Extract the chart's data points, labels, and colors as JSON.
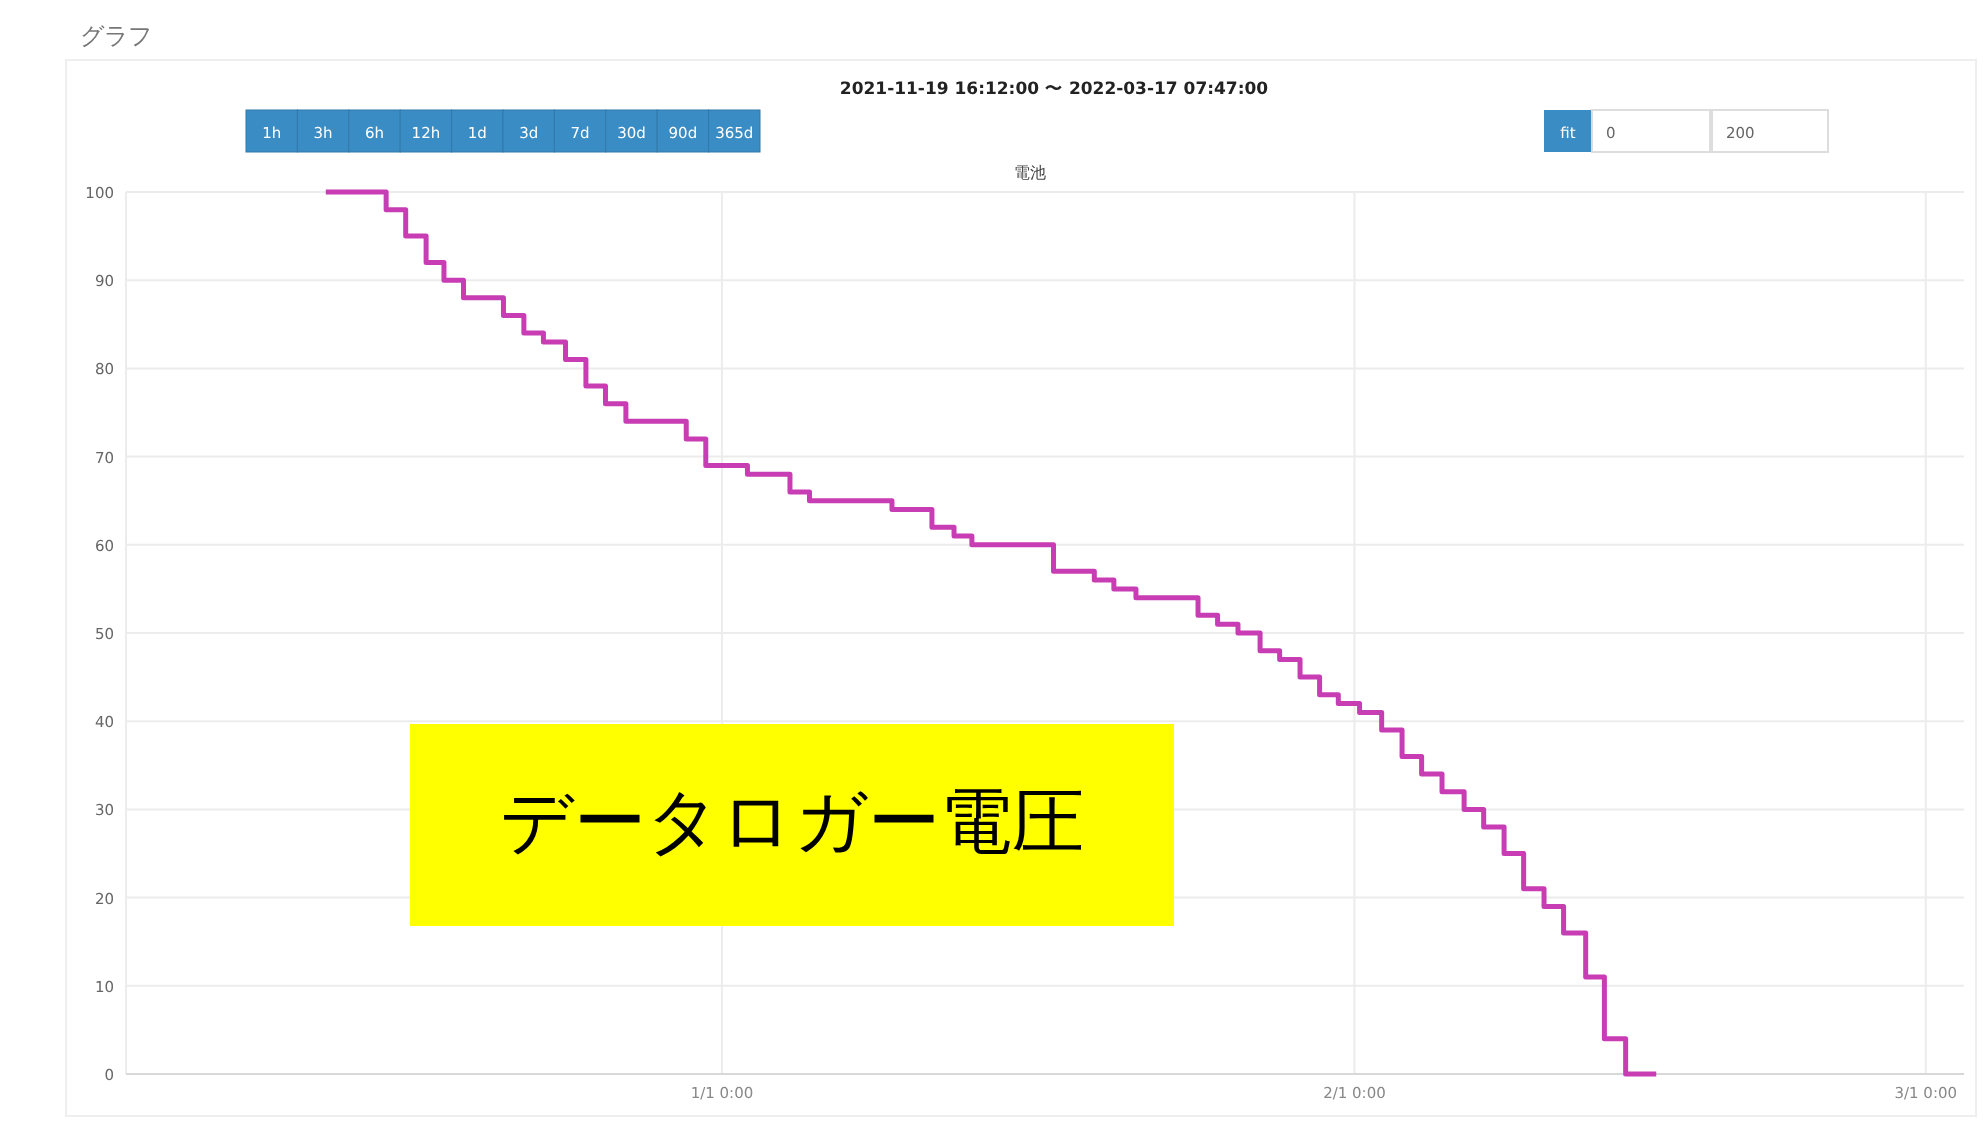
{
  "chart_data": {
    "type": "step",
    "title": "電池",
    "subtitle": "2021-11-19 16:12:00 〜 2022-03-17 07:47:00",
    "annotations": [
      "グラフ",
      "データロガー電圧",
      "1h",
      "3h",
      "6h",
      "12h",
      "1d",
      "3d",
      "7d",
      "30d",
      "90d",
      "365d",
      "fit",
      "0",
      "200"
    ],
    "x": [
      "2021-12-12T14:00",
      "2021-12-15T13:00",
      "2021-12-16T12:00",
      "2021-12-17T12:00",
      "2021-12-18T09:00",
      "2021-12-19T08:00",
      "2021-12-21T07:00",
      "2021-12-22T07:00",
      "2021-12-23T06:00",
      "2021-12-24T08:00",
      "2021-12-25T08:00",
      "2021-12-26T07:00",
      "2021-12-27T07:00",
      "2021-12-30T06:00",
      "2021-12-31T05:00",
      "2022-01-02T06:00",
      "2022-01-04T08:00",
      "2022-01-05T07:00",
      "2022-01-09T08:00",
      "2022-01-11T07:00",
      "2022-01-12T09:00",
      "2022-01-13T06:00",
      "2022-01-17T06:00",
      "2022-01-19T06:00",
      "2022-01-20T05:00",
      "2022-01-21T07:00",
      "2022-01-24T08:00",
      "2022-01-25T07:00",
      "2022-01-26T07:00",
      "2022-01-27T09:00",
      "2022-01-28T08:00",
      "2022-01-29T08:00",
      "2022-01-30T07:00",
      "2022-01-31T05:00",
      "2022-02-01T06:00",
      "2022-02-02T08:00",
      "2022-02-03T08:00",
      "2022-02-04T07:00",
      "2022-02-05T07:00",
      "2022-02-06T09:00",
      "2022-02-07T08:00",
      "2022-02-08T08:00",
      "2022-02-09T07:00",
      "2022-02-10T07:00",
      "2022-02-11T06:00",
      "2022-02-12T08:00",
      "2022-02-13T06:00",
      "2022-02-14T07:00",
      "2022-02-15T19:00"
    ],
    "series": [
      {
        "color": "#c83cb4",
        "values": [
          100,
          98,
          95,
          92,
          90,
          88,
          86,
          84,
          83,
          81,
          78,
          76,
          74,
          72,
          69,
          68,
          66,
          65,
          64,
          62,
          61,
          60,
          57,
          56,
          55,
          54,
          52,
          51,
          50,
          48,
          47,
          45,
          43,
          42,
          41,
          39,
          36,
          34,
          32,
          30,
          28,
          25,
          21,
          19,
          16,
          11,
          4,
          0,
          0
        ]
      }
    ],
    "xlim": [
      "2021-12-02T19:00",
      "2022-03-02T21:00"
    ],
    "xticks": [
      {
        "value": "2022-01-01",
        "label": "1/1 0:00"
      },
      {
        "value": "2022-02-01",
        "label": "2/1 0:00"
      },
      {
        "value": "2022-03-01",
        "label": "3/1 0:00"
      }
    ],
    "ylim": [
      0,
      100
    ],
    "yticks": [
      0,
      10,
      20,
      30,
      40,
      50,
      60,
      70,
      80,
      90,
      100
    ],
    "grid": true
  }
}
